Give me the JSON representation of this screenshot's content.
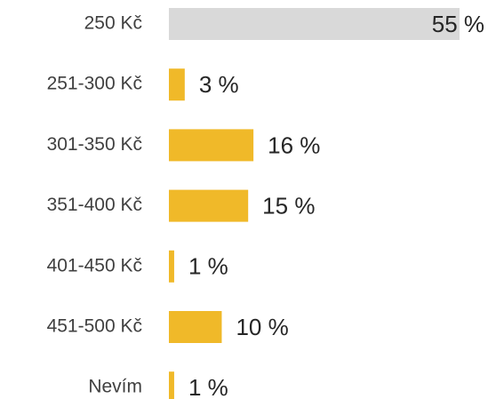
{
  "chart_data": {
    "type": "bar",
    "orientation": "horizontal",
    "categories": [
      "250 Kč",
      "251-300 Kč",
      "301-350 Kč",
      "351-400 Kč",
      "401-450 Kč",
      "451-500 Kč",
      "Nevím"
    ],
    "values": [
      55,
      3,
      16,
      15,
      1,
      10,
      1
    ],
    "value_labels": [
      "55 %",
      "3 %",
      "16 %",
      "15 %",
      "1 %",
      "10 %",
      "1 %"
    ],
    "colors": [
      "#d9d9d9",
      "#f0b929",
      "#f0b929",
      "#f0b929",
      "#f0b929",
      "#f0b929",
      "#f0b929"
    ]
  }
}
